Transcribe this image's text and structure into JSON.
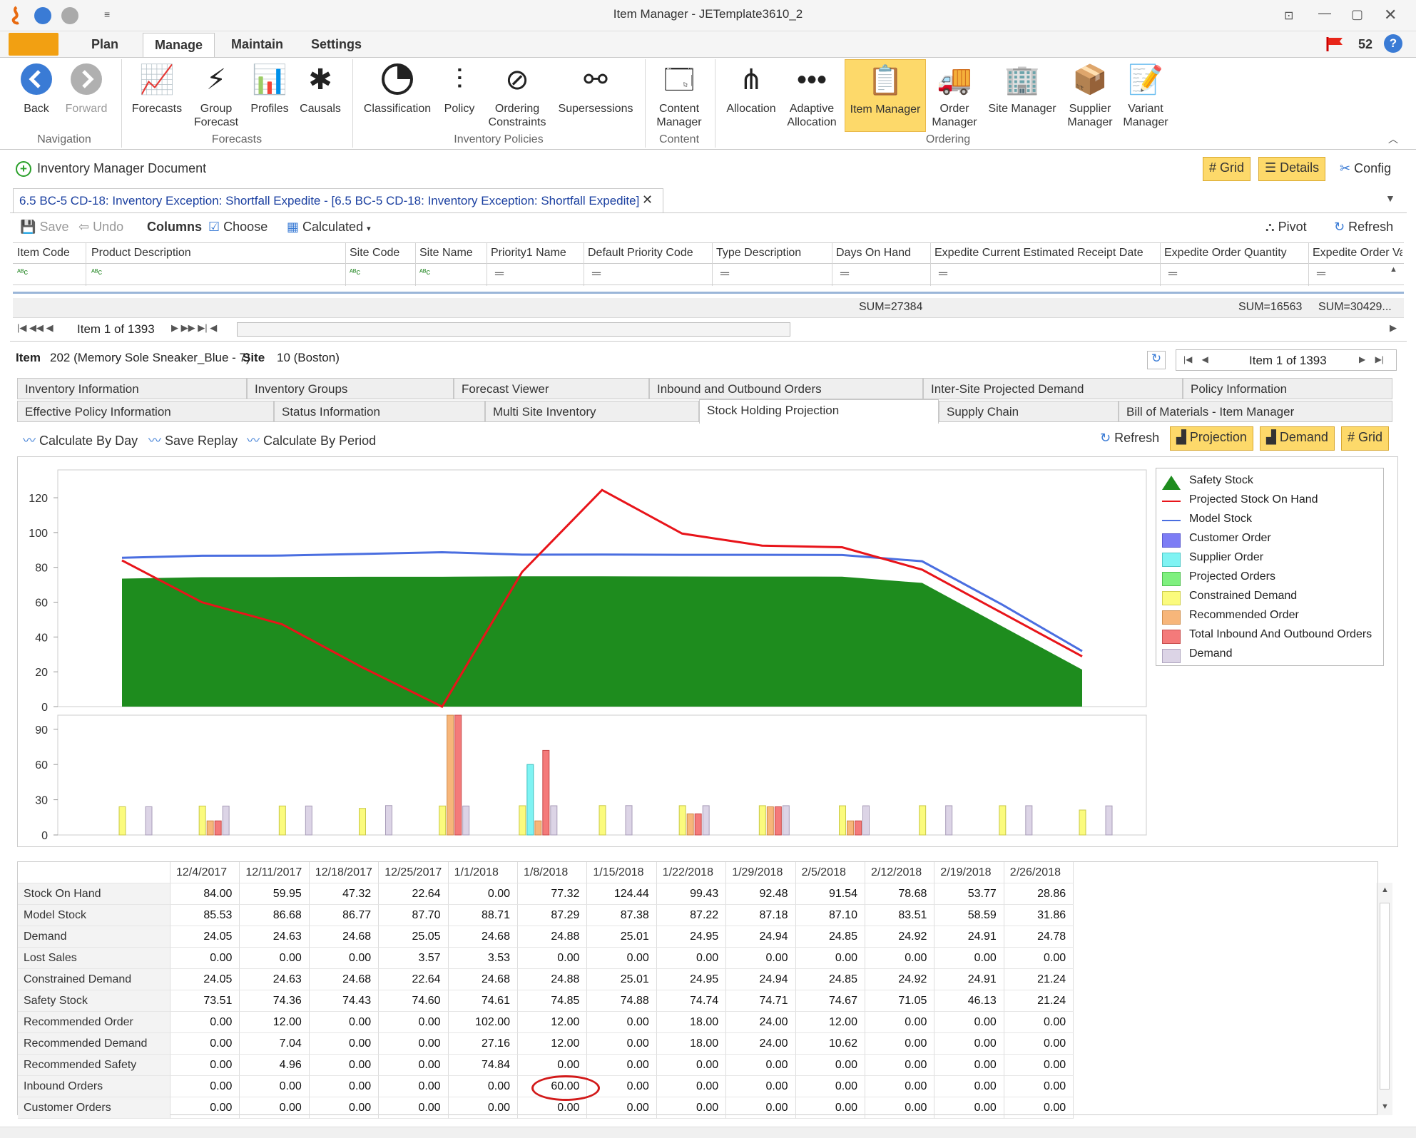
{
  "window": {
    "title": "Item Manager - JETemplate3610_2"
  },
  "ribbon_tabs": [
    "Plan",
    "Manage",
    "Maintain",
    "Settings"
  ],
  "notifications": {
    "count": "52"
  },
  "ribbon": {
    "navigation": {
      "label": "Navigation",
      "back": "Back",
      "forward": "Forward"
    },
    "forecasts": {
      "label": "Forecasts",
      "forecasts": "Forecasts",
      "group_forecast_1": "Group",
      "group_forecast_2": "Forecast",
      "profiles": "Profiles",
      "causals": "Causals"
    },
    "inventory_policies": {
      "label": "Inventory Policies",
      "classification": "Classification",
      "policy": "Policy",
      "ordering_1": "Ordering",
      "ordering_2": "Constraints",
      "supersessions": "Supersessions"
    },
    "content": {
      "label": "Content",
      "content_manager_1": "Content",
      "content_manager_2": "Manager"
    },
    "ordering": {
      "label": "Ordering",
      "allocation": "Allocation",
      "adaptive_1": "Adaptive",
      "adaptive_2": "Allocation",
      "item_manager": "Item Manager",
      "order_manager_1": "Order",
      "order_manager_2": "Manager",
      "site_manager": "Site Manager",
      "supplier_manager_1": "Supplier",
      "supplier_manager_2": "Manager",
      "variant_manager_1": "Variant",
      "variant_manager_2": "Manager"
    }
  },
  "docbar": {
    "title": "Inventory Manager Document",
    "grid": "Grid",
    "details": "Details",
    "config": "Config"
  },
  "doc_tab": {
    "label": "6.5  BC-5 CD-18: Inventory Exception: Shortfall Expedite - [6.5  BC-5 CD-18: Inventory Exception: Shortfall Expedite]"
  },
  "toolbar": {
    "save": "Save",
    "undo": "Undo",
    "columns": "Columns",
    "choose": "Choose",
    "calculated": "Calculated",
    "pivot": "Pivot",
    "refresh": "Refresh"
  },
  "grid": {
    "columns": [
      "Item Code",
      "Product Description",
      "Site Code",
      "Site Name",
      "Priority1 Name",
      "Default Priority Code",
      "Type Description",
      "Days On Hand",
      "Expedite Current Estimated Receipt Date",
      "Expedite Order Quantity",
      "Expedite Order Va"
    ],
    "sums": {
      "days_on_hand": "SUM=27384",
      "expedite_qty": "SUM=16563",
      "expedite_val": "SUM=30429..."
    },
    "pager": "Item 1 of 1393"
  },
  "detail": {
    "item_label": "Item",
    "item_value": "202 (Memory Sole Sneaker_Blue - 7)",
    "site_label": "Site",
    "site_value": "10 (Boston)",
    "pager": "Item 1 of 1393",
    "tabs_row1": [
      "Inventory Information",
      "Inventory Groups",
      "Forecast Viewer",
      "Inbound and Outbound Orders",
      "Inter-Site Projected Demand",
      "Policy Information"
    ],
    "tabs_row2": [
      "Effective Policy Information",
      "Status Information",
      "Multi Site Inventory",
      "Stock Holding Projection",
      "Supply Chain",
      "Bill of Materials - Item Manager"
    ],
    "actions": {
      "calc_day": "Calculate By Day",
      "save_replay": "Save Replay",
      "calc_period": "Calculate By Period",
      "refresh": "Refresh",
      "projection": "Projection",
      "demand": "Demand",
      "grid": "Grid"
    }
  },
  "colors": {
    "safety": "#1e8c1e",
    "projected": "#e8141a",
    "model": "#4a6ee0",
    "customer": "#7d7df5",
    "supplier": "#7ff3f3",
    "projected_orders": "#7ff07f",
    "constrained": "#fbfb7d",
    "recommended": "#f7b67a",
    "total_io": "#f47a7a",
    "demand": "#dcd4e6"
  },
  "chart_data": [
    {
      "type": "area",
      "x": [
        "12/4/2017",
        "12/11/2017",
        "12/18/2017",
        "12/25/2017",
        "1/1/2018",
        "1/8/2018",
        "1/15/2018",
        "1/22/2018",
        "1/29/2018",
        "2/5/2018",
        "2/12/2018",
        "2/19/2018",
        "2/26/2018"
      ],
      "y_ticks": [
        "0",
        "20",
        "40",
        "60",
        "80",
        "100",
        "120"
      ],
      "ylim": [
        0,
        136
      ],
      "series": [
        {
          "name": "Safety Stock",
          "kind": "area",
          "values": [
            73.51,
            74.36,
            74.43,
            74.6,
            74.61,
            74.85,
            74.88,
            74.74,
            74.71,
            74.67,
            71.05,
            46.13,
            21.24
          ]
        },
        {
          "name": "Projected Stock On Hand",
          "kind": "line",
          "values": [
            84.0,
            59.95,
            47.32,
            22.64,
            0.0,
            77.32,
            124.44,
            99.43,
            92.48,
            91.54,
            78.68,
            53.77,
            28.86
          ]
        },
        {
          "name": "Model Stock",
          "kind": "line",
          "values": [
            85.53,
            86.68,
            86.77,
            87.7,
            88.71,
            87.29,
            87.38,
            87.22,
            87.18,
            87.1,
            83.51,
            58.59,
            31.86
          ]
        }
      ],
      "legend": [
        "Safety Stock",
        "Projected Stock On Hand",
        "Model Stock",
        "Customer Order",
        "Supplier Order",
        "Projected Orders",
        "Constrained Demand",
        "Recommended Order",
        "Total Inbound And Outbound Orders",
        "Demand"
      ]
    },
    {
      "type": "bar",
      "categories": [
        "12/4/2017",
        "12/11/2017",
        "12/18/2017",
        "12/25/2017",
        "1/1/2018",
        "1/8/2018",
        "1/15/2018",
        "1/22/2018",
        "1/29/2018",
        "2/5/2018",
        "2/12/2018",
        "2/19/2018",
        "2/26/2018"
      ],
      "y_ticks": [
        "0",
        "30",
        "60",
        "90"
      ],
      "ylim": [
        0,
        102
      ],
      "series": [
        {
          "name": "Supplier Order",
          "values": [
            0,
            0,
            0,
            0,
            0,
            60,
            0,
            0,
            0,
            0,
            0,
            0,
            0
          ]
        },
        {
          "name": "Constrained Demand",
          "values": [
            24.05,
            24.63,
            24.68,
            22.64,
            24.68,
            24.88,
            25.01,
            24.95,
            24.94,
            24.85,
            24.92,
            24.91,
            21.24
          ]
        },
        {
          "name": "Recommended Order",
          "values": [
            0,
            12,
            0,
            0,
            102,
            12,
            0,
            18,
            24,
            12,
            0,
            0,
            0
          ]
        },
        {
          "name": "Total Inbound And Outbound Orders",
          "values": [
            0,
            12,
            0,
            0,
            102,
            72,
            0,
            18,
            24,
            12,
            0,
            0,
            0
          ]
        },
        {
          "name": "Demand",
          "values": [
            24.05,
            24.63,
            24.68,
            25.05,
            24.68,
            24.88,
            25.01,
            24.95,
            24.94,
            24.85,
            24.92,
            24.91,
            24.78
          ]
        }
      ]
    }
  ],
  "table": {
    "dates": [
      "12/4/2017",
      "12/11/2017",
      "12/18/2017",
      "12/25/2017",
      "1/1/2018",
      "1/8/2018",
      "1/15/2018",
      "1/22/2018",
      "1/29/2018",
      "2/5/2018",
      "2/12/2018",
      "2/19/2018",
      "2/26/2018"
    ],
    "rows": [
      {
        "label": "Stock On Hand",
        "values": [
          "84.00",
          "59.95",
          "47.32",
          "22.64",
          "0.00",
          "77.32",
          "124.44",
          "99.43",
          "92.48",
          "91.54",
          "78.68",
          "53.77",
          "28.86"
        ]
      },
      {
        "label": "Model Stock",
        "values": [
          "85.53",
          "86.68",
          "86.77",
          "87.70",
          "88.71",
          "87.29",
          "87.38",
          "87.22",
          "87.18",
          "87.10",
          "83.51",
          "58.59",
          "31.86"
        ]
      },
      {
        "label": "Demand",
        "values": [
          "24.05",
          "24.63",
          "24.68",
          "25.05",
          "24.68",
          "24.88",
          "25.01",
          "24.95",
          "24.94",
          "24.85",
          "24.92",
          "24.91",
          "24.78"
        ]
      },
      {
        "label": "Lost Sales",
        "values": [
          "0.00",
          "0.00",
          "0.00",
          "3.57",
          "3.53",
          "0.00",
          "0.00",
          "0.00",
          "0.00",
          "0.00",
          "0.00",
          "0.00",
          "0.00"
        ]
      },
      {
        "label": "Constrained Demand",
        "values": [
          "24.05",
          "24.63",
          "24.68",
          "22.64",
          "24.68",
          "24.88",
          "25.01",
          "24.95",
          "24.94",
          "24.85",
          "24.92",
          "24.91",
          "21.24"
        ]
      },
      {
        "label": "Safety Stock",
        "values": [
          "73.51",
          "74.36",
          "74.43",
          "74.60",
          "74.61",
          "74.85",
          "74.88",
          "74.74",
          "74.71",
          "74.67",
          "71.05",
          "46.13",
          "21.24"
        ]
      },
      {
        "label": "Recommended Order",
        "values": [
          "0.00",
          "12.00",
          "0.00",
          "0.00",
          "102.00",
          "12.00",
          "0.00",
          "18.00",
          "24.00",
          "12.00",
          "0.00",
          "0.00",
          "0.00"
        ]
      },
      {
        "label": "Recommended Demand",
        "values": [
          "0.00",
          "7.04",
          "0.00",
          "0.00",
          "27.16",
          "12.00",
          "0.00",
          "18.00",
          "24.00",
          "10.62",
          "0.00",
          "0.00",
          "0.00"
        ]
      },
      {
        "label": "Recommended Safety Stock",
        "values": [
          "0.00",
          "4.96",
          "0.00",
          "0.00",
          "74.84",
          "0.00",
          "0.00",
          "0.00",
          "0.00",
          "0.00",
          "0.00",
          "0.00",
          "0.00"
        ]
      },
      {
        "label": "Inbound Orders",
        "values": [
          "0.00",
          "0.00",
          "0.00",
          "0.00",
          "0.00",
          "60.00",
          "0.00",
          "0.00",
          "0.00",
          "0.00",
          "0.00",
          "0.00",
          "0.00"
        ]
      },
      {
        "label": "Customer Orders",
        "values": [
          "0.00",
          "0.00",
          "0.00",
          "0.00",
          "0.00",
          "0.00",
          "0.00",
          "0.00",
          "0.00",
          "0.00",
          "0.00",
          "0.00",
          "0.00"
        ]
      }
    ]
  }
}
